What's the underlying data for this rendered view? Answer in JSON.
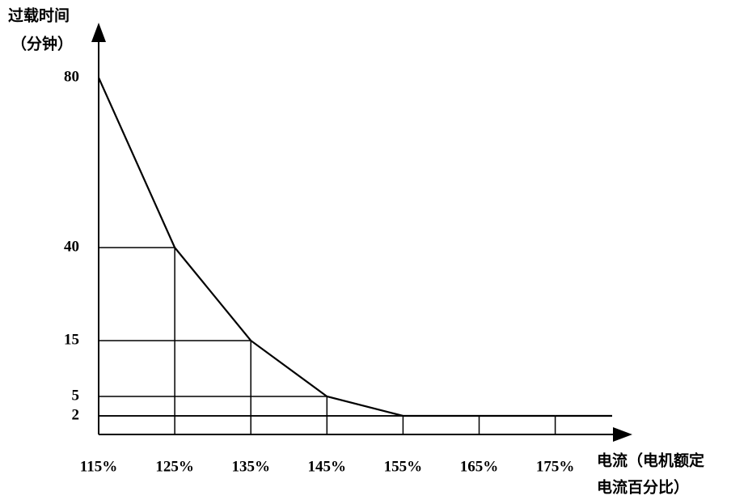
{
  "chart_data": {
    "type": "line",
    "y_label_lines": [
      "过载时间",
      "（分钟）"
    ],
    "x_label_lines": [
      "电流（电机额定",
      "电流百分比）"
    ],
    "categories": [
      "115%",
      "125%",
      "135%",
      "145%",
      "155%",
      "165%",
      "175%"
    ],
    "values": [
      80,
      40,
      15,
      5,
      2,
      2,
      2
    ],
    "color": "#000000",
    "ylim": [
      0,
      80
    ],
    "yticks": [
      2,
      5,
      15,
      40,
      80
    ],
    "grid": true
  }
}
